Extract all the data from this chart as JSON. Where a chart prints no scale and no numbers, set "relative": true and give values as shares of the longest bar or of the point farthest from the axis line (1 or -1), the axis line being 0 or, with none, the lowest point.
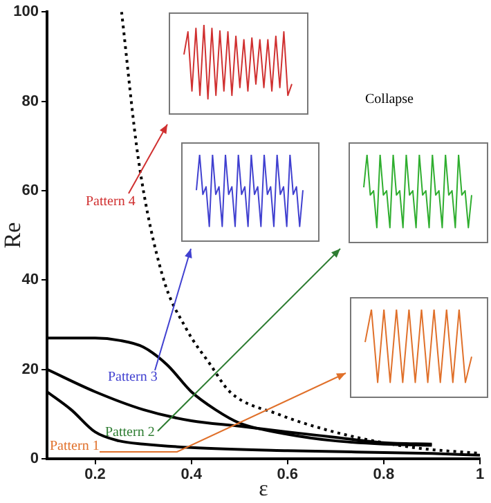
{
  "chart_data": [
    {
      "type": "line",
      "xlabel": "ε",
      "ylabel": "Re",
      "xlim": [
        0.1,
        1
      ],
      "xticks": [
        0.2,
        0.4,
        0.6,
        0.8,
        1
      ],
      "ylim": [
        0,
        100
      ],
      "yticks": [
        0,
        20,
        40,
        60,
        80,
        100
      ],
      "grid": false,
      "legend": false,
      "marker": "none",
      "line_style": "solid",
      "series": [
        {
          "color": "#000000",
          "x": [
            0.1,
            0.2,
            0.25,
            0.3,
            0.35,
            0.4,
            0.45,
            0.5,
            0.6,
            0.7,
            0.8,
            0.9
          ],
          "values": [
            27,
            27,
            26.5,
            25,
            21,
            15,
            11,
            8,
            5.5,
            4,
            3.3,
            3
          ]
        },
        {
          "color": "#000000",
          "x": [
            0.1,
            0.2,
            0.3,
            0.4,
            0.5,
            0.6,
            0.7,
            0.8,
            0.9
          ],
          "values": [
            20,
            15,
            11,
            8.5,
            7.3,
            6,
            4.8,
            3.6,
            3.3
          ]
        },
        {
          "color": "#000000",
          "x": [
            0.1,
            0.15,
            0.2,
            0.25,
            0.3,
            0.4,
            0.6,
            0.9,
            1
          ],
          "values": [
            15,
            11,
            6,
            4,
            3.3,
            2.5,
            1.8,
            1.2,
            0.8
          ]
        },
        {
          "color": "#000000",
          "line_style": "dotted",
          "x": [
            0.255,
            0.29,
            0.34,
            0.39,
            0.44,
            0.48,
            0.58,
            0.68,
            0.77,
            0.87,
            1
          ],
          "values": [
            100,
            67,
            41,
            29,
            21,
            15,
            10,
            6.5,
            4.2,
            2.4,
            1.2
          ]
        }
      ],
      "annotations": [
        "Pattern 1",
        "Pattern 2",
        "Pattern 3",
        "Pattern 4",
        "Collapse"
      ]
    },
    {
      "type": "line",
      "relative": true,
      "categories": [
        null,
        null,
        null,
        null,
        null,
        null,
        null,
        null,
        null,
        null,
        null,
        null,
        null,
        null,
        null,
        null,
        null,
        null,
        null,
        null,
        null,
        null,
        null,
        null,
        null,
        null,
        null,
        null
      ],
      "series": [
        {
          "color": "#d03030",
          "values": [
            0.66,
            0.92,
            0.24,
            0.96,
            0.19,
            1,
            0.15,
            0.96,
            0.19,
            0.93,
            0.24,
            0.92,
            0.19,
            0.87,
            0.28,
            0.83,
            0.24,
            0.85,
            0.32,
            0.83,
            0.28,
            0.83,
            0.24,
            0.87,
            0.28,
            0.92,
            0.19,
            0.32
          ]
        }
      ]
    },
    {
      "type": "line",
      "relative": true,
      "categories": [
        null,
        null,
        null,
        null,
        null,
        null,
        null,
        null,
        null,
        null,
        null,
        null,
        null,
        null,
        null,
        null,
        null,
        null,
        null,
        null,
        null,
        null,
        null,
        null,
        null,
        null,
        null,
        null,
        null,
        null,
        null,
        null,
        null,
        null
      ],
      "series": [
        {
          "color": "#4040d0",
          "values": [
            0.58,
            1,
            0.53,
            0.62,
            0.15,
            1,
            0.53,
            0.62,
            0.15,
            1,
            0.53,
            0.62,
            0.15,
            1,
            0.53,
            0.62,
            0.15,
            1,
            0.53,
            0.62,
            0.15,
            1,
            0.53,
            0.62,
            0.15,
            1,
            0.53,
            0.62,
            0.15,
            1,
            0.53,
            0.62,
            0.15,
            0.58
          ]
        }
      ]
    },
    {
      "type": "line",
      "relative": true,
      "categories": [
        null,
        null,
        null,
        null,
        null,
        null,
        null,
        null,
        null,
        null,
        null,
        null,
        null,
        null,
        null,
        null,
        null,
        null,
        null,
        null,
        null,
        null,
        null,
        null,
        null,
        null,
        null,
        null,
        null,
        null,
        null,
        null,
        null,
        null
      ],
      "series": [
        {
          "color": "#2fae2f",
          "values": [
            0.62,
            1,
            0.53,
            0.58,
            0.15,
            1,
            0.53,
            0.58,
            0.15,
            1,
            0.53,
            0.58,
            0.15,
            1,
            0.53,
            0.58,
            0.15,
            1,
            0.53,
            0.58,
            0.15,
            1,
            0.53,
            0.58,
            0.15,
            1,
            0.53,
            0.58,
            0.15,
            1,
            0.53,
            0.58,
            0.15,
            0.53
          ]
        }
      ]
    },
    {
      "type": "line",
      "relative": true,
      "categories": [
        null,
        null,
        null,
        null,
        null,
        null,
        null,
        null,
        null,
        null,
        null,
        null,
        null,
        null,
        null,
        null,
        null,
        null
      ],
      "series": [
        {
          "color": "#e0702a",
          "values": [
            0.62,
            1,
            0.15,
            1,
            0.15,
            1,
            0.15,
            1,
            0.15,
            1,
            0.15,
            1,
            0.15,
            1,
            0.15,
            1,
            0.15,
            0.45
          ]
        }
      ]
    }
  ]
}
